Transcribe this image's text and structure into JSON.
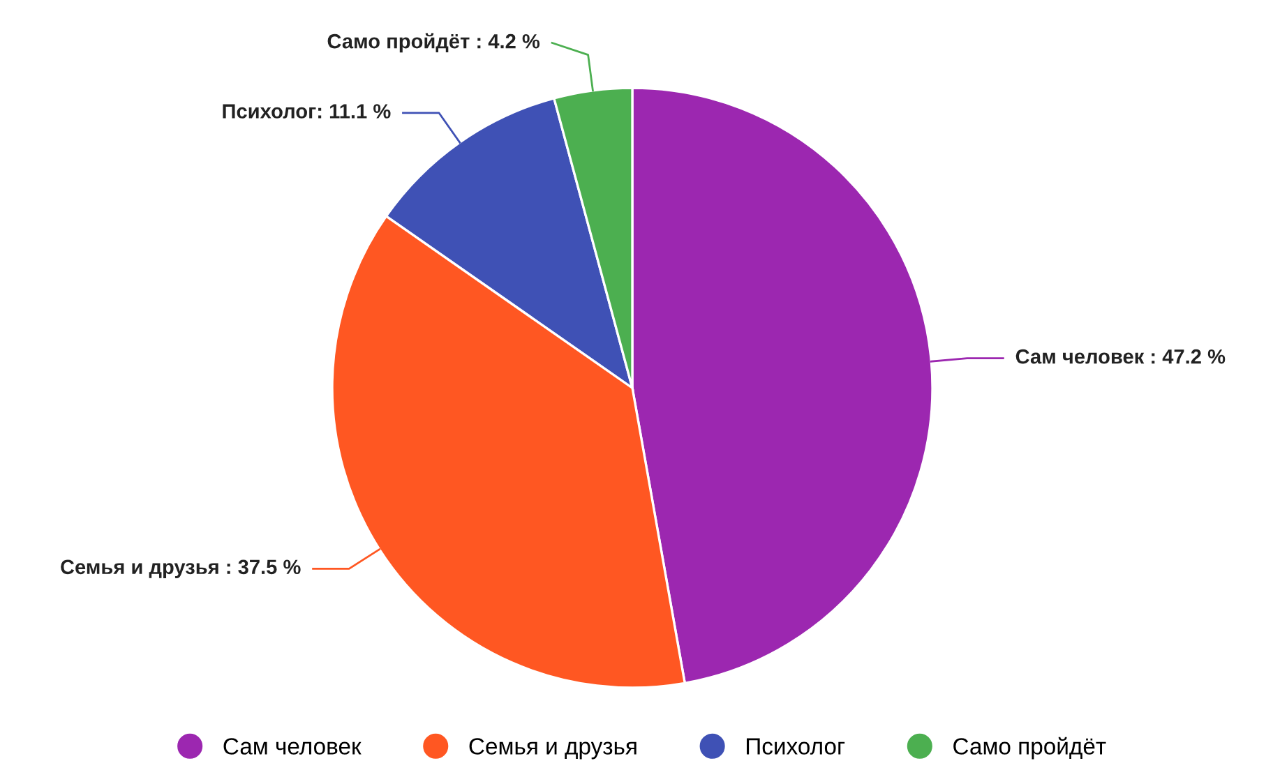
{
  "chart_data": {
    "type": "pie",
    "categories": [
      "Сам человек",
      "Семья и друзья",
      "Психолог",
      "Само пройдёт"
    ],
    "values": [
      47.2,
      37.5,
      11.1,
      4.2
    ],
    "colors": [
      "#9c27b0",
      "#ff5722",
      "#3f51b5",
      "#4caf50"
    ],
    "value_labels": [
      "Сам человек : 47.2 %",
      "Семья и друзья : 37.5 %",
      "Психолог: 11.1 %",
      "Само пройдёт : 4.2 %"
    ],
    "legend": "bottom"
  }
}
